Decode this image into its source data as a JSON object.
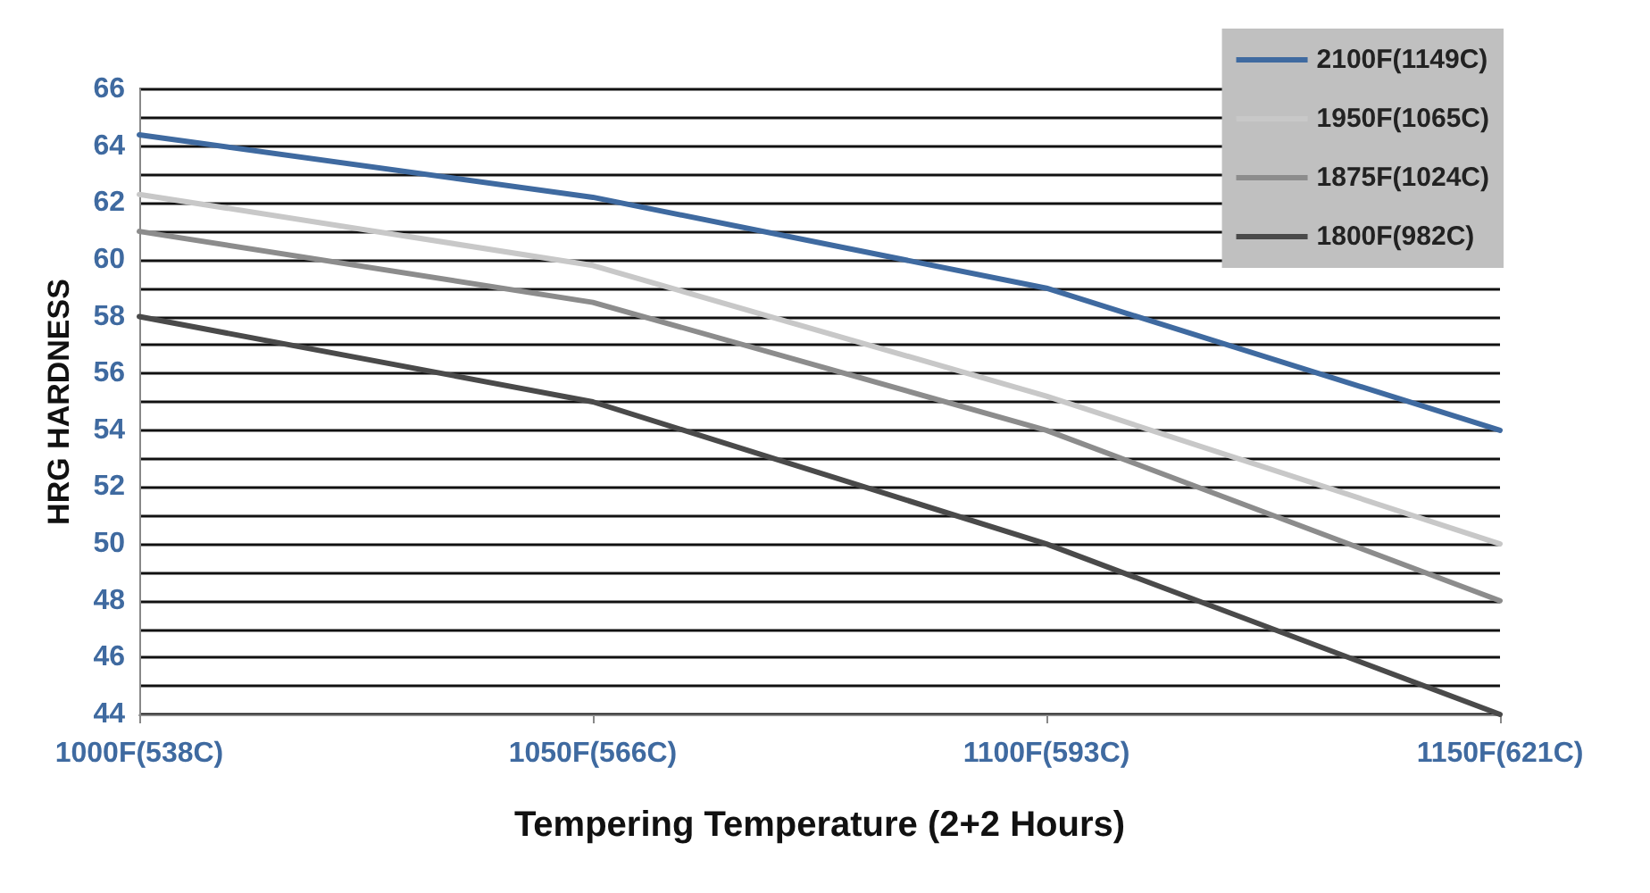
{
  "chart_data": {
    "type": "line",
    "xlabel": "Tempering Temperature (2+2 Hours)",
    "ylabel": "HRG HARDNESS",
    "categories": [
      "1000F(538C)",
      "1050F(566C)",
      "1100F(593C)",
      "1150F(621C)"
    ],
    "series": [
      {
        "name": "2100F(1149C)",
        "color": "#3f6aa0",
        "values": [
          64.4,
          62.2,
          59,
          54
        ]
      },
      {
        "name": "1950F(1065C)",
        "color": "#c8c8c8",
        "values": [
          62.3,
          59.8,
          55.2,
          50
        ]
      },
      {
        "name": "1875F(1024C)",
        "color": "#8c8c8c",
        "values": [
          61,
          58.5,
          54,
          48
        ]
      },
      {
        "name": "1800F(982C)",
        "color": "#4a4a4a",
        "values": [
          58,
          55,
          50,
          44
        ]
      }
    ],
    "ylim": [
      44,
      66
    ],
    "yticks": [
      44,
      {
        "value": 45,
        "label": null
      },
      46,
      {
        "value": 47,
        "label": null
      },
      48,
      {
        "value": 49,
        "label": null
      },
      50,
      {
        "value": 51,
        "label": null
      },
      52,
      {
        "value": 53,
        "label": null
      },
      54,
      {
        "value": 55,
        "label": null
      },
      56,
      {
        "value": 57,
        "label": null
      },
      58,
      {
        "value": 59,
        "label": null
      },
      60,
      {
        "value": 61,
        "label": null
      },
      62,
      {
        "value": 63,
        "label": null
      },
      64,
      {
        "value": 65,
        "label": null
      },
      66
    ],
    "grid": "y",
    "legend": "top right",
    "marker": "none",
    "line_style": "solid"
  }
}
